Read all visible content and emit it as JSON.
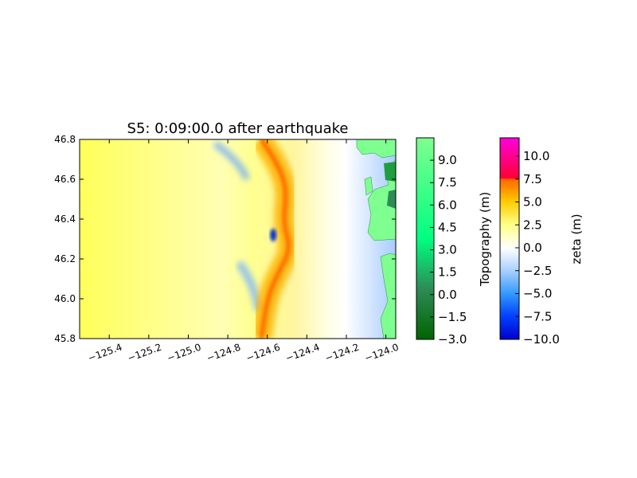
{
  "chart_data": [
    {
      "type": "heatmap",
      "title": "S5: 0:09:00.0 after earthquake",
      "xlabel": "",
      "ylabel": "",
      "xlim": [
        -125.55,
        -123.95
      ],
      "ylim": [
        45.8,
        46.8
      ],
      "x_ticks": [
        -125.4,
        -125.2,
        -125.0,
        -124.8,
        -124.6,
        -124.4,
        -124.2,
        -124.0
      ],
      "x_tick_labels": [
        "−125.4",
        "−125.2",
        "−125.0",
        "−124.8",
        "−124.6",
        "−124.4",
        "−124.2",
        "−124.0"
      ],
      "y_ticks": [
        45.8,
        46.0,
        46.2,
        46.4,
        46.6,
        46.8
      ],
      "y_tick_labels": [
        "45.8",
        "46.0",
        "46.2",
        "46.4",
        "46.6",
        "46.8"
      ],
      "grid": false,
      "wavefront": {
        "points": [
          [
            -124.63,
            46.8
          ],
          [
            -124.55,
            46.68
          ],
          [
            -124.5,
            46.55
          ],
          [
            -124.52,
            46.38
          ],
          [
            -124.48,
            46.25
          ],
          [
            -124.55,
            46.12
          ],
          [
            -124.6,
            46.0
          ],
          [
            -124.63,
            45.8
          ]
        ],
        "peak_zeta": 8.0
      },
      "trough": {
        "x": -124.57,
        "y": 46.32,
        "zeta": -9.0
      },
      "land_topography_m": 7.5
    },
    {
      "type": "colorbar",
      "label": "Topography (m)",
      "range": [
        -3.0,
        10.5
      ],
      "ticks": [
        -3.0,
        -1.5,
        0.0,
        1.5,
        3.0,
        4.5,
        6.0,
        7.5,
        9.0
      ],
      "tick_labels": [
        "−3.0",
        "−1.5",
        "0.0",
        "1.5",
        "3.0",
        "4.5",
        "6.0",
        "7.5",
        "9.0"
      ],
      "colors": [
        "#006400",
        "#2e8b57",
        "#00ff7f",
        "#7fff8f"
      ]
    },
    {
      "type": "colorbar",
      "label": "zeta (m)",
      "range": [
        -10.0,
        12.0
      ],
      "ticks": [
        -10.0,
        -7.5,
        -5.0,
        -2.5,
        0.0,
        2.5,
        5.0,
        7.5,
        10.0
      ],
      "tick_labels": [
        "−10.0",
        "−7.5",
        "−5.0",
        "−2.5",
        "0.0",
        "2.5",
        "5.0",
        "7.5",
        "10.0"
      ],
      "colors": [
        "#0000cc",
        "#0066ff",
        "#66b2ff",
        "#ffffff",
        "#ffff66",
        "#ffcc00",
        "#ff6600",
        "#ff0033",
        "#ff00cc"
      ]
    }
  ]
}
